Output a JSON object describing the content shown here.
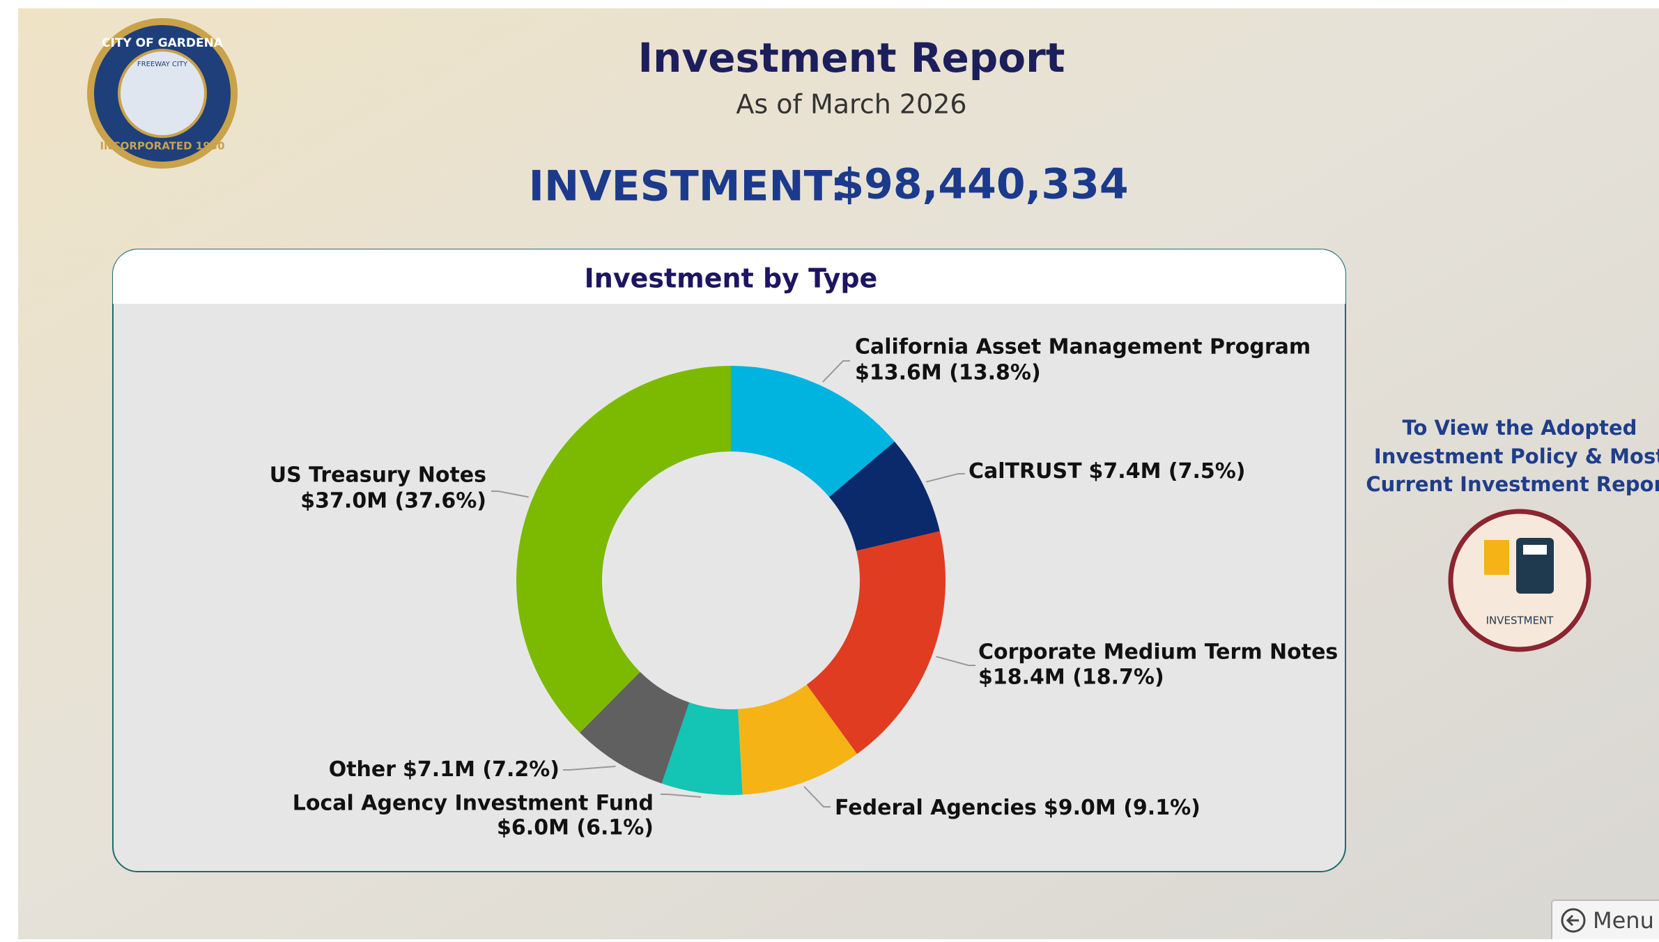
{
  "header": {
    "title": "Investment Report",
    "subtitle": "As of March 2026",
    "total_label": "INVESTMENT:",
    "total_value": "$98,440,334"
  },
  "logo": {
    "top": "CITY OF GARDENA",
    "middle": "FREEWAY CITY",
    "bottom": "INCORPORATED 1930"
  },
  "chart_data": {
    "type": "donut",
    "title": "Investment by Type",
    "categories": [
      "California Asset Management Program",
      "CalTRUST",
      "Corporate Medium Term Notes",
      "Federal Agencies",
      "Local Agency Investment Fund",
      "Other",
      "US Treasury Notes"
    ],
    "values": [
      13.6,
      7.4,
      18.4,
      9.0,
      6.0,
      7.1,
      37.0
    ],
    "value_labels": [
      "$13.6M (13.8%)",
      "$7.4M (7.5%)",
      "$18.4M (18.7%)",
      "$9.0M (9.1%)",
      "$6.0M (6.1%)",
      "$7.1M (7.2%)",
      "$37.0M (37.6%)"
    ],
    "colors": [
      "#00b4e0",
      "#0a2a6b",
      "#e03c22",
      "#f5b316",
      "#14c4b4",
      "#606060",
      "#7bba00"
    ]
  },
  "side_panel": {
    "lines": [
      "To View the Adopted",
      "Investment Policy & Most",
      "Current Investment Report"
    ],
    "icon_label": "INVESTMENT"
  },
  "menu": {
    "label": "Menu"
  }
}
